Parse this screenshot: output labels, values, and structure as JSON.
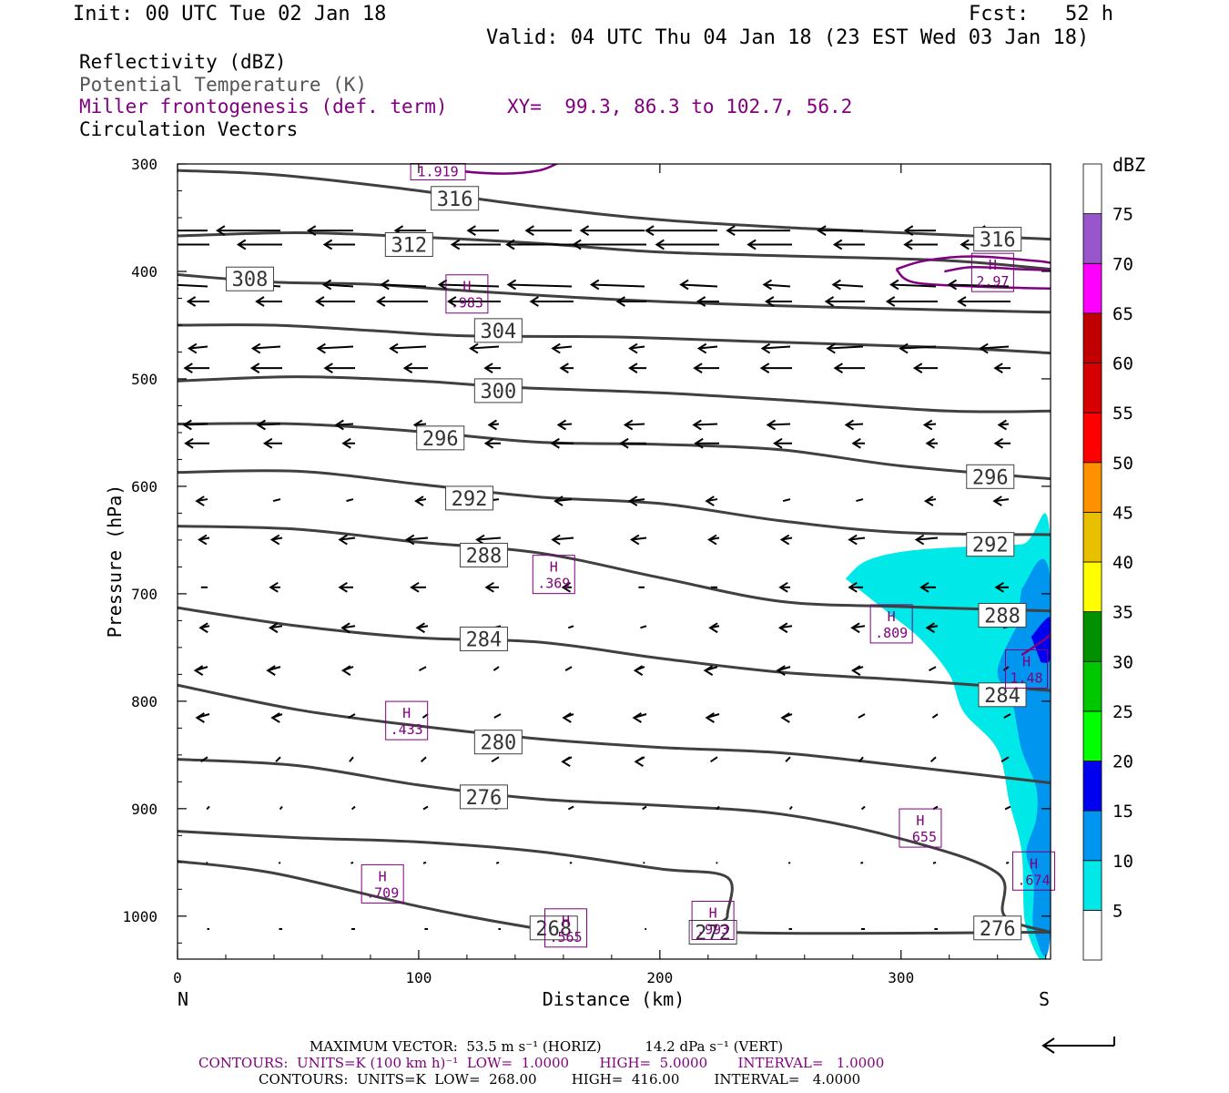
{
  "header": {
    "init": "Init: 00 UTC Tue 02 Jan 18",
    "fcst": "Fcst:   52 h",
    "valid": "Valid: 04 UTC Thu 04 Jan 18 (23 EST Wed 03 Jan 18)"
  },
  "legend": {
    "line1": "Reflectivity (dBZ)",
    "line2": "Potential Temperature (K)",
    "line3": "Miller frontogenesis (def. term)",
    "xy": "XY=  99.3, 86.3 to 102.7, 56.2",
    "line4": "Circulation Vectors"
  },
  "colors": {
    "theta": "#404040",
    "frontogenesis": "#800080",
    "legend_gray": "#555555",
    "vectors": "#000000"
  },
  "footer": {
    "max_vector": "MAXIMUM VECTOR:  53.5 m s⁻¹ (HORIZ)          14.2 dPa s⁻¹ (VERT)",
    "contours_purple": "CONTOURS:  UNITS=K (100 km h)⁻¹  LOW=  1.0000       HIGH=  5.0000       INTERVAL=   1.0000",
    "contours_black": "CONTOURS:  UNITS=K  LOW=  268.00        HIGH=  416.00        INTERVAL=   4.0000"
  },
  "chart_data": {
    "type": "cross-section",
    "xlabel": "Distance (km)",
    "ylabel": "Pressure (hPa)",
    "xlim": [
      0,
      362
    ],
    "ylim": [
      1040,
      300
    ],
    "x_ticks": [
      0,
      100,
      200,
      300
    ],
    "y_ticks": [
      300,
      400,
      500,
      600,
      700,
      800,
      900,
      1000
    ],
    "left_end_label": "N",
    "right_end_label": "S",
    "colorbar": {
      "title": "dBZ",
      "ticks": [
        5,
        10,
        15,
        20,
        25,
        30,
        35,
        40,
        45,
        50,
        55,
        60,
        65,
        70,
        75
      ],
      "colors": [
        "#ffffff",
        "#00e8e8",
        "#0096f0",
        "#0000f0",
        "#00ff00",
        "#00c800",
        "#009000",
        "#ffff00",
        "#e8c000",
        "#ff9000",
        "#ff0000",
        "#d60000",
        "#c00000",
        "#ff00ff",
        "#9955cc",
        "#ffffff"
      ]
    },
    "theta_contours": [
      {
        "label": "316",
        "points": [
          [
            0,
            306
          ],
          [
            40,
            310
          ],
          [
            90,
            322
          ],
          [
            150,
            340
          ],
          [
            200,
            352
          ],
          [
            260,
            360
          ],
          [
            320,
            366
          ],
          [
            362,
            370
          ]
        ],
        "labels": [
          [
            115,
            332
          ],
          [
            340,
            370
          ]
        ]
      },
      {
        "label": "312",
        "points": [
          [
            0,
            367
          ],
          [
            50,
            364
          ],
          [
            100,
            368
          ],
          [
            150,
            374
          ],
          [
            200,
            382
          ],
          [
            260,
            386
          ],
          [
            320,
            390
          ],
          [
            362,
            398
          ]
        ],
        "labels": [
          [
            96,
            375
          ]
        ]
      },
      {
        "label": "308",
        "points": [
          [
            0,
            403
          ],
          [
            40,
            410
          ],
          [
            80,
            412
          ],
          [
            120,
            418
          ],
          [
            180,
            426
          ],
          [
            250,
            432
          ],
          [
            320,
            436
          ],
          [
            362,
            438
          ]
        ],
        "labels": [
          [
            30,
            407
          ]
        ]
      },
      {
        "label": "304",
        "points": [
          [
            0,
            450
          ],
          [
            40,
            450
          ],
          [
            80,
            455
          ],
          [
            120,
            460
          ],
          [
            180,
            461
          ],
          [
            250,
            466
          ],
          [
            320,
            471
          ],
          [
            362,
            476
          ]
        ],
        "labels": [
          [
            133,
            455
          ]
        ]
      },
      {
        "label": "300",
        "points": [
          [
            0,
            502
          ],
          [
            50,
            498
          ],
          [
            100,
            502
          ],
          [
            140,
            508
          ],
          [
            200,
            513
          ],
          [
            260,
            521
          ],
          [
            320,
            530
          ],
          [
            362,
            530
          ]
        ],
        "labels": [
          [
            133,
            511
          ]
        ]
      },
      {
        "label": "296",
        "points": [
          [
            0,
            542
          ],
          [
            50,
            542
          ],
          [
            100,
            549
          ],
          [
            150,
            559
          ],
          [
            200,
            561
          ],
          [
            250,
            566
          ],
          [
            300,
            581
          ],
          [
            362,
            593
          ]
        ],
        "labels": [
          [
            109,
            555
          ],
          [
            337,
            591
          ]
        ]
      },
      {
        "label": "292",
        "points": [
          [
            0,
            587
          ],
          [
            50,
            586
          ],
          [
            100,
            598
          ],
          [
            150,
            610
          ],
          [
            200,
            616
          ],
          [
            250,
            632
          ],
          [
            300,
            643
          ],
          [
            362,
            645
          ]
        ],
        "labels": [
          [
            121,
            611
          ],
          [
            337,
            654
          ]
        ]
      },
      {
        "label": "288",
        "points": [
          [
            0,
            637
          ],
          [
            50,
            640
          ],
          [
            100,
            652
          ],
          [
            150,
            662
          ],
          [
            200,
            685
          ],
          [
            250,
            707
          ],
          [
            300,
            712
          ],
          [
            362,
            716
          ]
        ],
        "labels": [
          [
            127,
            664
          ],
          [
            342,
            720
          ]
        ]
      },
      {
        "label": "284",
        "points": [
          [
            0,
            713
          ],
          [
            50,
            730
          ],
          [
            100,
            741
          ],
          [
            150,
            745
          ],
          [
            200,
            760
          ],
          [
            250,
            773
          ],
          [
            300,
            780
          ],
          [
            362,
            790
          ]
        ],
        "labels": [
          [
            127,
            742
          ],
          [
            342,
            794
          ]
        ]
      },
      {
        "label": "280",
        "points": [
          [
            0,
            785
          ],
          [
            50,
            808
          ],
          [
            100,
            823
          ],
          [
            150,
            835
          ],
          [
            200,
            843
          ],
          [
            250,
            848
          ],
          [
            300,
            860
          ],
          [
            362,
            876
          ]
        ],
        "labels": [
          [
            133,
            838
          ]
        ]
      },
      {
        "label": "276",
        "points": [
          [
            0,
            854
          ],
          [
            50,
            860
          ],
          [
            100,
            878
          ],
          [
            150,
            891
          ],
          [
            200,
            897
          ],
          [
            250,
            905
          ],
          [
            300,
            928
          ],
          [
            340,
            960
          ],
          [
            343,
            1000
          ],
          [
            362,
            1015
          ]
        ],
        "labels": [
          [
            127,
            889
          ],
          [
            340,
            1011
          ]
        ]
      },
      {
        "label": "272",
        "points": [
          [
            0,
            921
          ],
          [
            50,
            927
          ],
          [
            100,
            931
          ],
          [
            150,
            940
          ],
          [
            200,
            956
          ],
          [
            228,
            964
          ],
          [
            228,
            1000
          ],
          [
            230,
            1015
          ],
          [
            362,
            1015
          ]
        ],
        "labels": [
          [
            222,
            1015
          ]
        ]
      },
      {
        "label": "268",
        "points": [
          [
            0,
            949
          ],
          [
            40,
            960
          ],
          [
            100,
            991
          ],
          [
            145,
            1010
          ],
          [
            165,
            1015
          ]
        ],
        "labels": [
          [
            156,
            1011
          ]
        ]
      }
    ],
    "frontogenesis_maxima": [
      {
        "label": "H",
        "value": ".983",
        "x": 120,
        "y": 421
      },
      {
        "label": "H",
        "value": "2.97",
        "x": 338,
        "y": 401
      },
      {
        "label": "H",
        "value": ".369",
        "x": 156,
        "y": 682
      },
      {
        "label": "H",
        "value": ".809",
        "x": 296,
        "y": 728
      },
      {
        "label": "H",
        "value": "1.48",
        "x": 352,
        "y": 770
      },
      {
        "label": "H",
        "value": ".433",
        "x": 95,
        "y": 818
      },
      {
        "label": "H",
        "value": ".655",
        "x": 308,
        "y": 918
      },
      {
        "label": "H",
        "value": ".674",
        "x": 355,
        "y": 958
      },
      {
        "label": "H",
        "value": ".709",
        "x": 85,
        "y": 970
      },
      {
        "label": "H",
        "value": ".993",
        "x": 222,
        "y": 1004
      },
      {
        "label": "H",
        "value": ".565",
        "x": 161,
        "y": 1011
      },
      {
        "label": "",
        "value": "1.919",
        "x": 108,
        "y": 303
      }
    ],
    "reflectivity_regions": [
      {
        "dbz": 5,
        "points": [
          [
            277,
            686
          ],
          [
            285,
            670
          ],
          [
            300,
            661
          ],
          [
            320,
            657
          ],
          [
            350,
            654
          ],
          [
            362,
            651
          ],
          [
            362,
            1012
          ],
          [
            352,
            1012
          ],
          [
            350,
            940
          ],
          [
            345,
            895
          ],
          [
            340,
            845
          ],
          [
            326,
            810
          ],
          [
            320,
            775
          ],
          [
            308,
            742
          ],
          [
            296,
            720
          ]
        ]
      },
      {
        "dbz": 10,
        "points": [
          [
            350,
            695
          ],
          [
            362,
            690
          ],
          [
            362,
            1012
          ],
          [
            355,
            1012
          ],
          [
            355,
            968
          ],
          [
            352,
            940
          ],
          [
            356,
            910
          ],
          [
            356,
            880
          ],
          [
            350,
            845
          ],
          [
            346,
            800
          ],
          [
            340,
            772
          ],
          [
            348,
            730
          ]
        ]
      },
      {
        "dbz": 15,
        "points": [
          [
            354,
            740
          ],
          [
            362,
            722
          ],
          [
            362,
            760
          ],
          [
            358,
            764
          ]
        ]
      }
    ]
  }
}
